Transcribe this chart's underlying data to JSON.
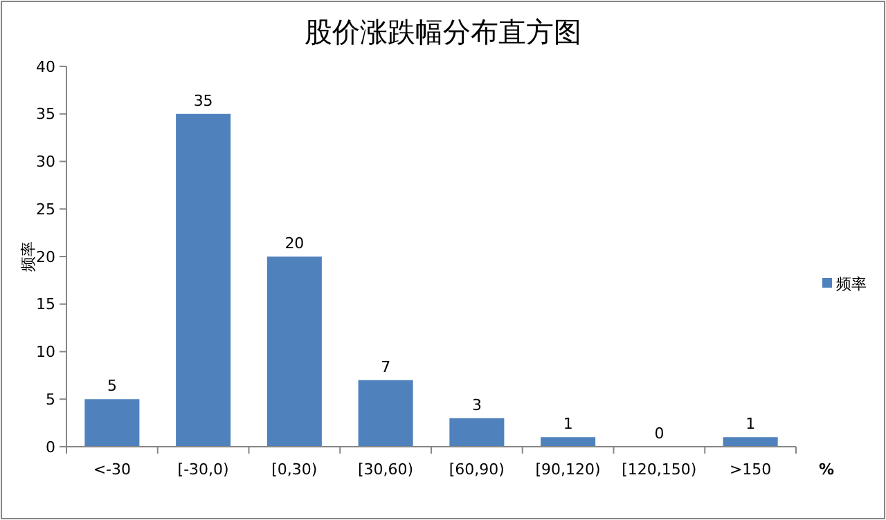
{
  "chart_data": {
    "type": "bar",
    "title": "股价涨跌幅分布直方图",
    "ylabel": "频率",
    "xlabel": "%",
    "categories": [
      "<-30",
      "[-30,0)",
      "[0,30)",
      "[30,60)",
      "[60,90)",
      "[90,120)",
      "[120,150)",
      ">150"
    ],
    "series": [
      {
        "name": "频率",
        "color": "#4f81bd",
        "values": [
          5,
          35,
          20,
          7,
          3,
          1,
          0,
          1
        ]
      }
    ],
    "ylim": [
      0,
      40
    ],
    "yticks": [
      0,
      5,
      10,
      15,
      20,
      25,
      30,
      35,
      40
    ],
    "data_labels": true,
    "legend": "right",
    "grid": false
  }
}
